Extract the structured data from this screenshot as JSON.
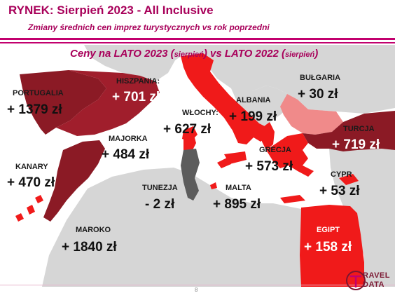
{
  "header": {
    "title": "RYNEK: Sierpień 2023 - All Inclusive",
    "subtitle": "Zmiany średnich cen imprez turystycznych vs rok poprzedni"
  },
  "map_title": {
    "main_a": "Ceny na LATO 2023 (",
    "small_a": "sierpień",
    "main_b": ") vs  LATO 2022 (",
    "small_b": "sierpień",
    "main_c": ")"
  },
  "colors": {
    "accent": "#c2006e",
    "dark_red": "#8b1a25",
    "red": "#f01a1a",
    "pink": "#f08a8a",
    "gray": "#5c5c5c",
    "land": "#d4d4d4",
    "sea": "#ffffff"
  },
  "countries": [
    {
      "id": "portugalia",
      "label": "PORTUGALIA",
      "value": "+ 1379 zł"
    },
    {
      "id": "hiszpania",
      "label": "HISZPANIA:",
      "value": "+ 701 zł"
    },
    {
      "id": "wlochy",
      "label": "WŁOCHY:",
      "value": "+ 627 zł"
    },
    {
      "id": "albania",
      "label": "ALBANIA",
      "value": "+ 199 zł"
    },
    {
      "id": "bulgaria",
      "label": "BUŁGARIA",
      "value": "+ 30 zł"
    },
    {
      "id": "turcja",
      "label": "TURCJA",
      "value": "+ 719 zł"
    },
    {
      "id": "majorka",
      "label": "MAJORKA",
      "value": "+ 484 zł"
    },
    {
      "id": "grecja",
      "label": "GRECJA",
      "value": "+ 573 zł"
    },
    {
      "id": "kanary",
      "label": "KANARY",
      "value": "+ 470 zł"
    },
    {
      "id": "cypr",
      "label": "CYPR",
      "value": "+ 53 zł"
    },
    {
      "id": "tunezja",
      "label": "TUNEZJA",
      "value": "- 2 zł"
    },
    {
      "id": "malta",
      "label": "MALTA",
      "value": "+ 895 zł"
    },
    {
      "id": "maroko",
      "label": "MAROKO",
      "value": "+ 1840 zł"
    },
    {
      "id": "egipt",
      "label": "EGIPT",
      "value": "+ 158 zł"
    }
  ],
  "footer": {
    "page_number": "8",
    "logo_text_top": "RAVEL",
    "logo_text_bottom": "DATA"
  }
}
